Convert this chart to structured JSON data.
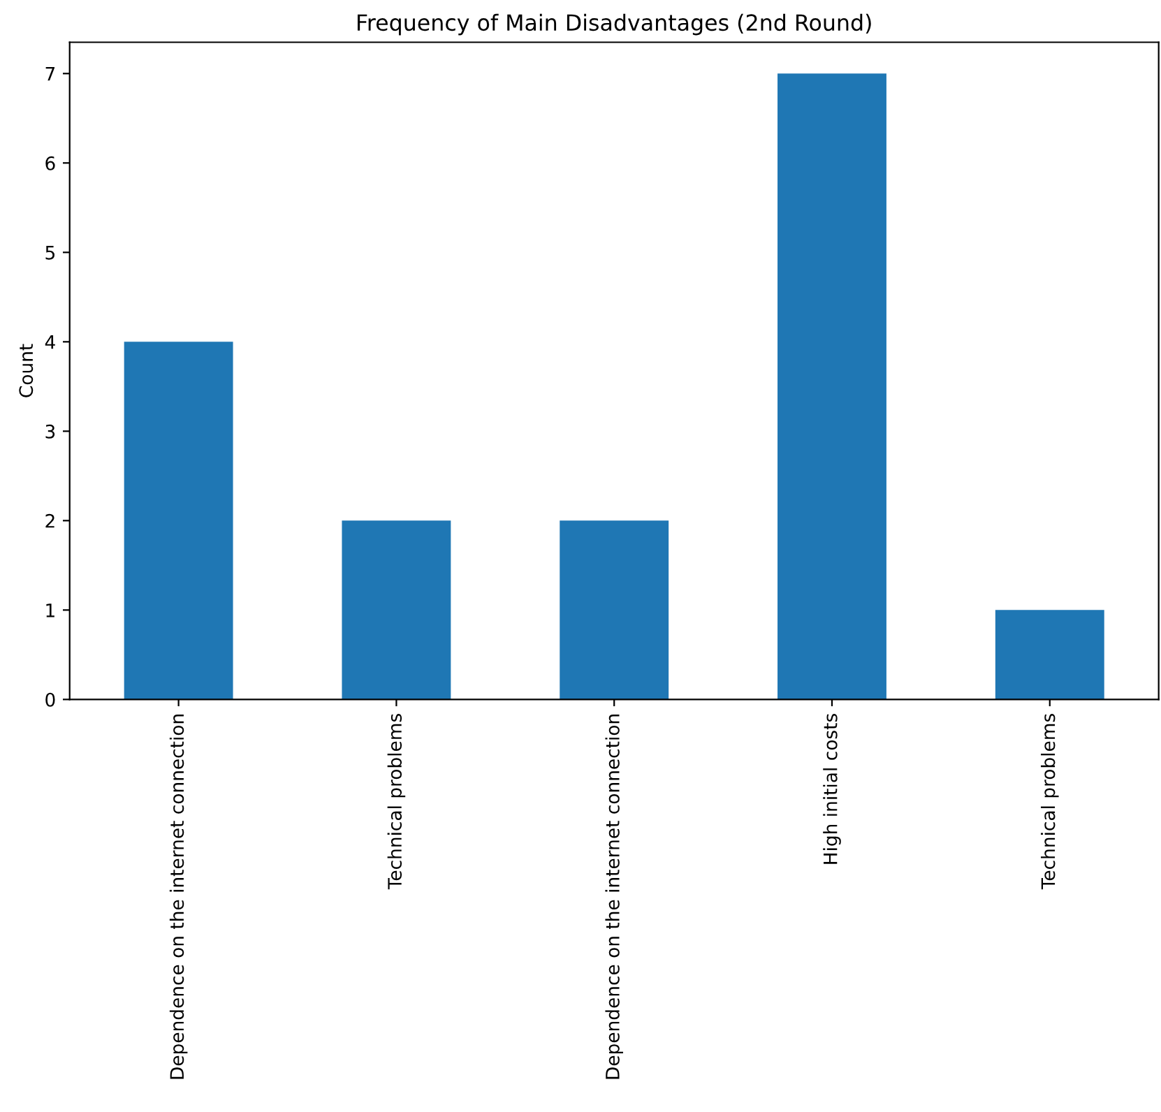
{
  "chart_data": {
    "type": "bar",
    "title": "Frequency of Main Disadvantages (2nd Round)",
    "ylabel": "Count",
    "categories": [
      "Dependence on the internet connection",
      "Technical problems",
      "Dependence on the internet connection",
      "High initial costs",
      "Technical problems"
    ],
    "values": [
      4,
      2,
      2,
      7,
      1
    ],
    "color": "#1f77b4",
    "ylim": [
      0,
      7.35
    ],
    "yticks": [
      0,
      1,
      2,
      3,
      4,
      5,
      6,
      7
    ],
    "grid": false
  }
}
